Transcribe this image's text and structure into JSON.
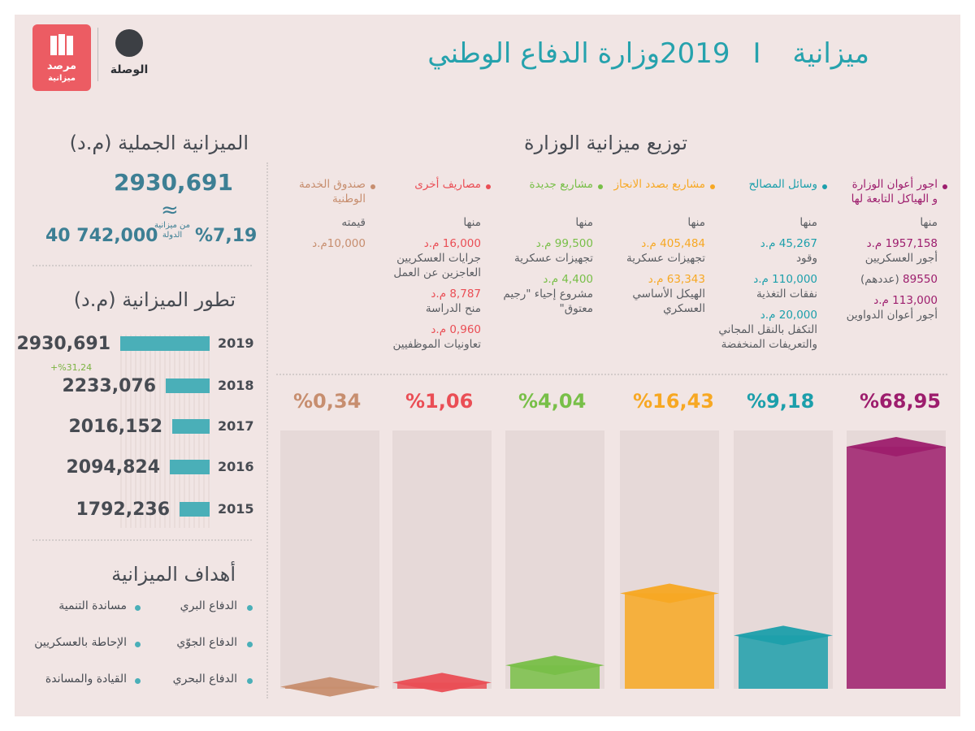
{
  "header": {
    "title_part1": "ميزانية 2019",
    "separator": "I",
    "title_part2": "وزارة الدفاع الوطني",
    "logo_main": "الوصلة",
    "logo_secondary_line1": "مرصد",
    "logo_secondary_line2": "ميزانية"
  },
  "total": {
    "title": "الميزانية الجملية (م.د)",
    "value": "2930,691",
    "approx_symbol": "≈",
    "share_pct": "%7,19",
    "share_note": "من ميزانية الدولة",
    "state_budget": "40 742,000"
  },
  "evolution": {
    "title": "تطور الميزانية (م.د)",
    "growth_note": "+%31,24"
  },
  "goals": {
    "title": "أهداف الميزانية",
    "items": [
      "الدفاع البري",
      "الدفاع الجوّي",
      "الدفاع البحري",
      "مساندة التنمية",
      "الإحاطة بالعسكريين",
      "القيادة والمساندة"
    ]
  },
  "distribution": {
    "title": "توزيع ميزانية الوزارة",
    "columns": [
      {
        "title_line1": "اجور أعوان الوزارة",
        "title_line2": "و الهياكل التابعة لها",
        "color": "#9d1d6d",
        "label": "منها",
        "items": [
          {
            "value": "1957,158 م.د",
            "desc": "أجور العسكريين"
          },
          {
            "value": "89550",
            "value_suffix": "(عددهم)"
          },
          {
            "value": "113,000 م.د",
            "desc": "أجور أعوان الدواوين"
          }
        ],
        "pct": "%68,95"
      },
      {
        "title_line1": "وسائل المصالح",
        "color": "#1c9fab",
        "label": "منها",
        "items": [
          {
            "value": "45,267 م.د",
            "desc": "وقود"
          },
          {
            "value": "110,000 م.د",
            "desc": "نفقات التغذية"
          },
          {
            "value": "20,000 م.د",
            "desc": "التكفل بالنقل المجاني والتعريفات المنخفضة"
          }
        ],
        "pct": "%9,18"
      },
      {
        "title_line1": "مشاريع بصدد الانجاز",
        "color": "#f7a823",
        "label": "منها",
        "items": [
          {
            "value": "405,484 م.د",
            "desc": "تجهيزات عسكرية"
          },
          {
            "value": "63,343 م.د",
            "desc": "الهيكل الأساسي العسكري"
          }
        ],
        "pct": "%16,43"
      },
      {
        "title_line1": "مشاريع جديدة",
        "color": "#78bf48",
        "label": "منها",
        "items": [
          {
            "value": "99,500 م.د",
            "desc": "تجهيزات عسكرية"
          },
          {
            "value": "4,400 م.د",
            "desc": "مشروع إحياء \"رجيم معتوق\""
          }
        ],
        "pct": "%4,04"
      },
      {
        "title_line1": "مصاريف أخرى",
        "color": "#ea4e55",
        "label": "منها",
        "items": [
          {
            "value": "16,000 م.د",
            "desc": "جرايات العسكريين العاجزين عن العمل"
          },
          {
            "value": "8,787 م.د",
            "desc": "منح الدراسة"
          },
          {
            "value": "0,960 م.د",
            "desc": "تعاونيات الموظفيين"
          }
        ],
        "pct": "%1,06"
      },
      {
        "title_line1": "صندوق الخدمة",
        "title_line2": "الوطنية",
        "color": "#c78e6f",
        "label": "قيمته",
        "items": [
          {
            "value": "10,000م.د"
          }
        ],
        "pct": "%0,34"
      }
    ]
  },
  "chart_data": [
    {
      "type": "bar",
      "title": "تطور الميزانية (م.د)",
      "categories": [
        "2019",
        "2018",
        "2017",
        "2016",
        "2015"
      ],
      "values": [
        2930.691,
        2233.076,
        2016.152,
        2094.824,
        1792.236
      ],
      "value_labels": [
        "2930,691",
        "2233,076",
        "2016,152",
        "2094,824",
        "1792,236"
      ],
      "orientation": "horizontal"
    },
    {
      "type": "bar",
      "title": "توزيع ميزانية الوزارة",
      "categories": [
        "اجور أعوان الوزارة و الهياكل التابعة لها",
        "وسائل المصالح",
        "مشاريع بصدد الانجاز",
        "مشاريع جديدة",
        "مصاريف أخرى",
        "صندوق الخدمة الوطنية"
      ],
      "values": [
        68.95,
        9.18,
        16.43,
        4.04,
        1.06,
        0.34
      ],
      "colors": [
        "#9d1d6d",
        "#1c9fab",
        "#f7a823",
        "#78bf48",
        "#ea4e55",
        "#c78e6f"
      ],
      "ylim": [
        0,
        100
      ]
    }
  ]
}
